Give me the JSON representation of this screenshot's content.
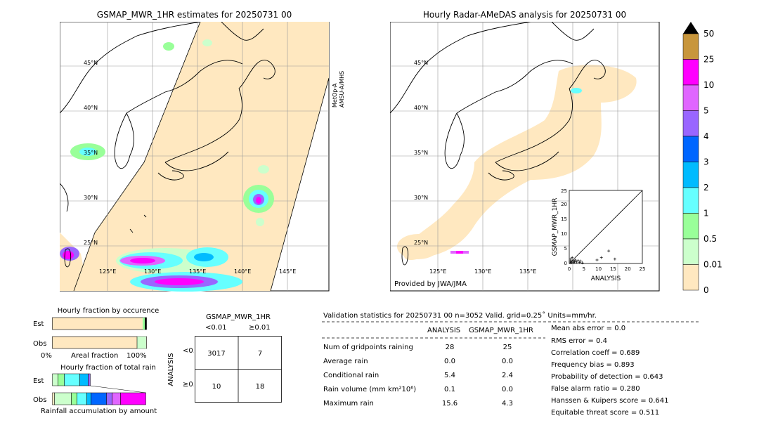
{
  "left_map": {
    "title": "GSMAP_MWR_1HR estimates for 20250731 00",
    "satellite_label_1": "MetOp-A",
    "satellite_label_2": "AMSU-A/MHS",
    "lat_labels": [
      "45°N",
      "40°N",
      "35°N",
      "30°N",
      "25°N"
    ],
    "lon_labels": [
      "125°E",
      "130°E",
      "135°E",
      "140°E",
      "145°E"
    ]
  },
  "right_map": {
    "title": "Hourly Radar-AMeDAS analysis for 20250731 00",
    "lat_labels": [
      "45°N",
      "40°N",
      "35°N",
      "30°N",
      "25°N"
    ],
    "lon_labels": [
      "125°E",
      "130°E",
      "135°E"
    ],
    "credit": "Provided by JWA/JMA"
  },
  "colorbar": {
    "labels": [
      "50",
      "25",
      "10",
      "5",
      "4",
      "3",
      "2",
      "1",
      "0.5",
      "0.01",
      "0"
    ],
    "colors": [
      "#c8963c",
      "#ff00ff",
      "#e066ff",
      "#9966ff",
      "#0066ff",
      "#00bbff",
      "#66ffff",
      "#99ff99",
      "#ccffcc",
      "#ffe8c0"
    ],
    "top_color": "#000000"
  },
  "scatter": {
    "xlabel": "ANALYSIS",
    "ylabel": "GSMAP_MWR_1HR",
    "ticks": [
      "0",
      "5",
      "10",
      "15",
      "20",
      "25"
    ]
  },
  "fraction_occurrence": {
    "title": "Hourly fraction by occurence",
    "row_labels": [
      "Est",
      "Obs"
    ],
    "axis_left": "0%",
    "axis_mid": "Areal fraction",
    "axis_right": "100%"
  },
  "fraction_total": {
    "title": "Hourly fraction of total rain",
    "row_labels": [
      "Est",
      "Obs"
    ],
    "axis_label": "Rainfall accumulation by amount"
  },
  "contingency": {
    "title": "GSMAP_MWR_1HR",
    "col_labels": [
      "<0.01",
      "≥0.01"
    ],
    "row_axis": "ANALYSIS",
    "row_labels": [
      "<0.01",
      "≥0.01"
    ],
    "cells": [
      [
        "3017",
        "7"
      ],
      [
        "10",
        "18"
      ]
    ]
  },
  "validation": {
    "header": "Validation statistics for 20250731 00  n=3052 Valid. grid=0.25˚ Units=mm/hr.",
    "col_headers": [
      "ANALYSIS",
      "GSMAP_MWR_1HR"
    ],
    "rows": [
      {
        "label": "Num of gridpoints raining",
        "analysis": "28",
        "gsmap": "25"
      },
      {
        "label": "Average rain",
        "analysis": "0.0",
        "gsmap": "0.0"
      },
      {
        "label": "Conditional rain",
        "analysis": "5.4",
        "gsmap": "2.4"
      },
      {
        "label": "Rain volume (mm km²10⁶)",
        "analysis": "0.1",
        "gsmap": "0.0"
      },
      {
        "label": "Maximum rain",
        "analysis": "15.6",
        "gsmap": "4.3"
      }
    ],
    "scores": [
      "Mean abs error =    0.0",
      "RMS error =    0.4",
      "Correlation coeff =  0.689",
      "Frequency bias =  0.893",
      "Probability of detection =  0.643",
      "False alarm ratio =  0.280",
      "Hanssen & Kuipers score =  0.641",
      "Equitable threat score =  0.511"
    ]
  },
  "chart_data": {
    "type": "scatter",
    "xlabel": "ANALYSIS",
    "ylabel": "GSMAP_MWR_1HR",
    "xlim": [
      0,
      25
    ],
    "ylim": [
      0,
      25
    ],
    "points": [
      [
        0.3,
        0.8
      ],
      [
        0.5,
        1.5
      ],
      [
        0.8,
        0.5
      ],
      [
        1.0,
        2.0
      ],
      [
        1.2,
        1.0
      ],
      [
        1.5,
        0.3
      ],
      [
        2.0,
        1.2
      ],
      [
        2.5,
        0.5
      ],
      [
        3.0,
        1.0
      ],
      [
        3.5,
        0.4
      ],
      [
        4.0,
        0.8
      ],
      [
        4.5,
        0.2
      ],
      [
        9.5,
        1.2
      ],
      [
        11.0,
        2.0
      ],
      [
        13.5,
        4.3
      ],
      [
        15.6,
        1.5
      ],
      [
        0.6,
        0.2
      ],
      [
        1.8,
        0.6
      ]
    ]
  }
}
